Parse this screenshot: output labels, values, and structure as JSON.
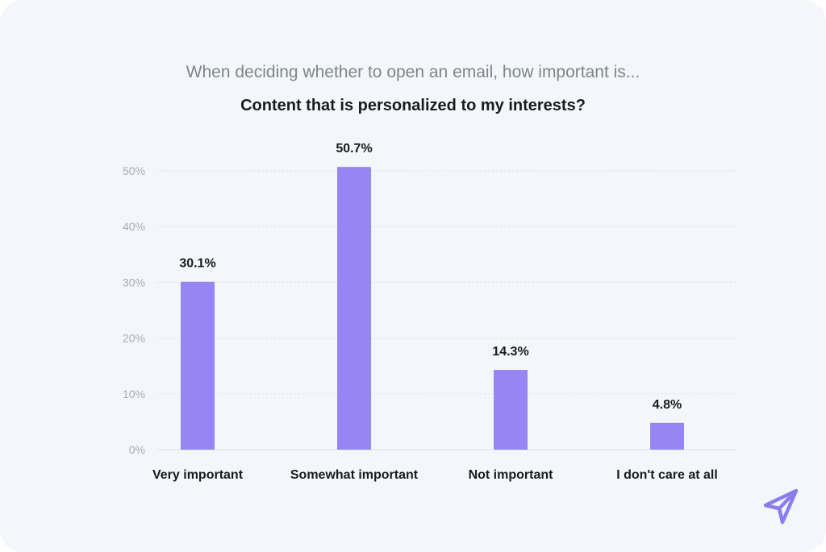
{
  "chart_data": {
    "type": "bar",
    "subtitle": "When deciding whether to open an email, how important is...",
    "title": "Content that is personalized to my interests?",
    "categories": [
      "Very important",
      "Somewhat important",
      "Not important",
      "I don't care at all"
    ],
    "values": [
      30.1,
      50.7,
      14.3,
      4.8
    ],
    "value_labels": [
      "30.1%",
      "50.7%",
      "14.3%",
      "4.8%"
    ],
    "ylim": [
      0,
      50
    ],
    "yticks": [
      0,
      10,
      20,
      30,
      40,
      50
    ],
    "ytick_labels": [
      "0%",
      "10%",
      "20%",
      "30%",
      "40%",
      "50%"
    ],
    "grid": true,
    "legend": "none",
    "bar_color": "#9785f3",
    "gridline_color": "#dde2e8"
  },
  "brand": {
    "logo_icon": "paper-plane-icon",
    "logo_color": "#8b7cf0"
  }
}
